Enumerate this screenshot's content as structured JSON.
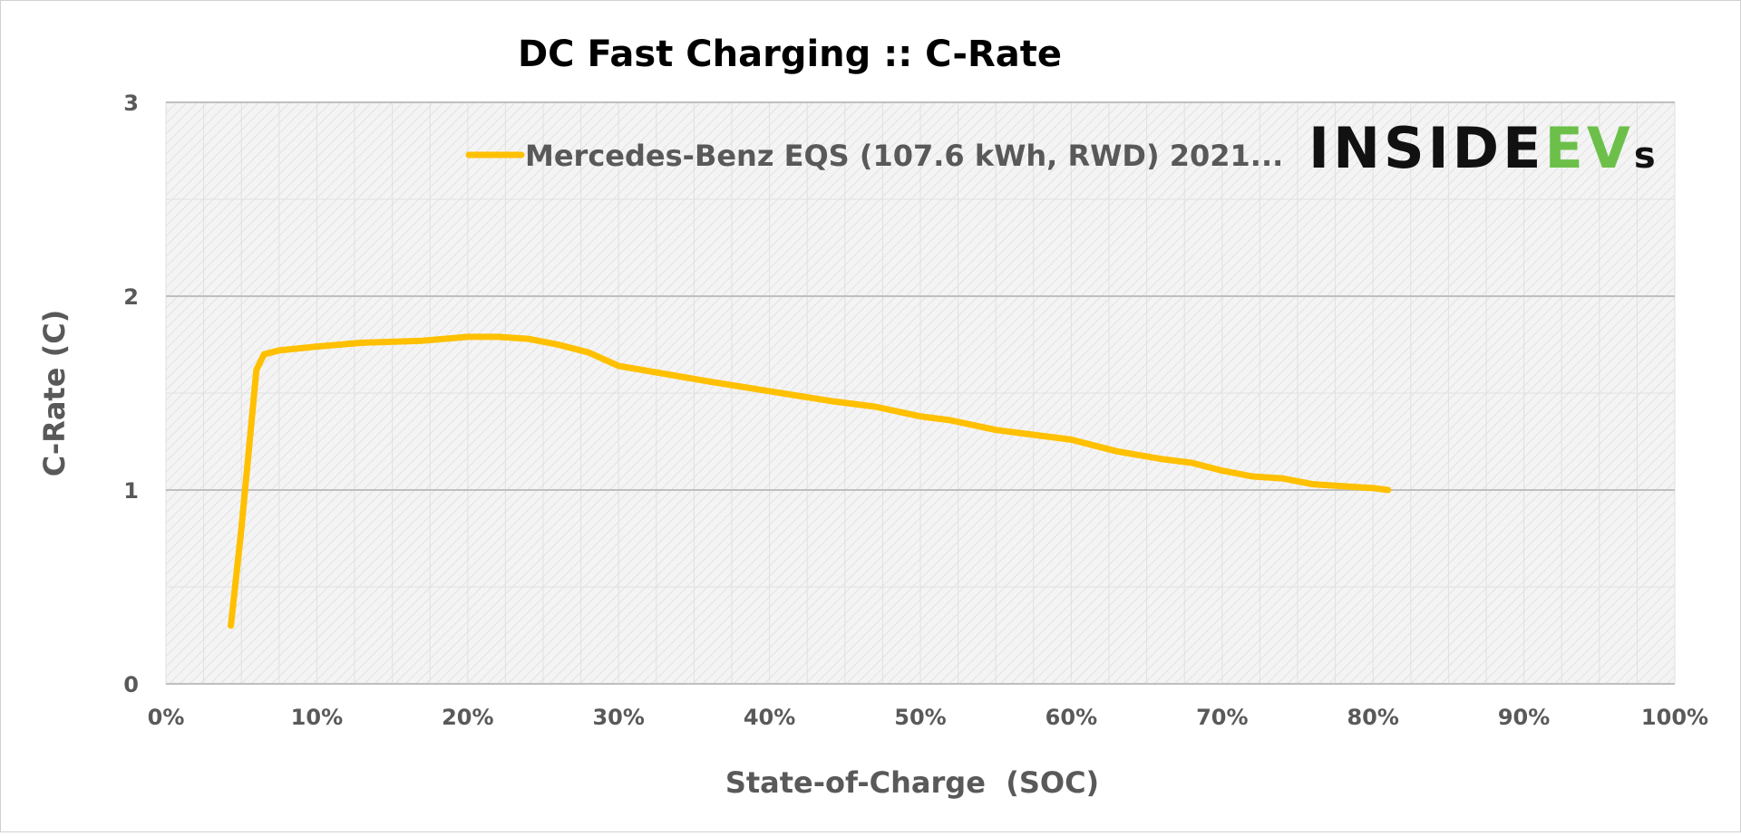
{
  "chart_data": {
    "type": "line",
    "title": "DC Fast Charging :: C-Rate",
    "xlabel": "State-of-Charge  (SOC)",
    "ylabel": "C-Rate (C)",
    "xlim": [
      0,
      100
    ],
    "ylim": [
      0,
      3
    ],
    "x_ticks": [
      "0%",
      "10%",
      "20%",
      "30%",
      "40%",
      "50%",
      "60%",
      "70%",
      "80%",
      "90%",
      "100%"
    ],
    "y_ticks": [
      "0",
      "1",
      "2",
      "3"
    ],
    "grid": true,
    "legend_position": "top-right",
    "series": [
      {
        "name": "Mercedes-Benz EQS (107.6 kWh, RWD) 2021...",
        "color": "#FFC000",
        "x": [
          4.3,
          5,
          6,
          6.5,
          7.5,
          10,
          13,
          17,
          20,
          22,
          24,
          26,
          28,
          30,
          33,
          36,
          40,
          44,
          47,
          50,
          52,
          55,
          58,
          60,
          63,
          66,
          68,
          70,
          72,
          74,
          76,
          78,
          80,
          81
        ],
        "y": [
          0.3,
          0.8,
          1.62,
          1.7,
          1.72,
          1.74,
          1.76,
          1.77,
          1.79,
          1.79,
          1.78,
          1.75,
          1.71,
          1.64,
          1.6,
          1.56,
          1.51,
          1.46,
          1.43,
          1.38,
          1.36,
          1.31,
          1.28,
          1.26,
          1.2,
          1.16,
          1.14,
          1.1,
          1.07,
          1.06,
          1.03,
          1.02,
          1.01,
          1.0
        ]
      }
    ]
  },
  "watermark": {
    "text_main": "INSIDE",
    "text_accent": "EV",
    "text_suffix": "s",
    "main_color": "#111111",
    "accent_color": "#6CC04A"
  },
  "colors": {
    "axis_text": "#595959",
    "major_grid": "#BFBFBF",
    "plot_fill": "#F2F2F2",
    "hatch": "#E4E4E4"
  }
}
